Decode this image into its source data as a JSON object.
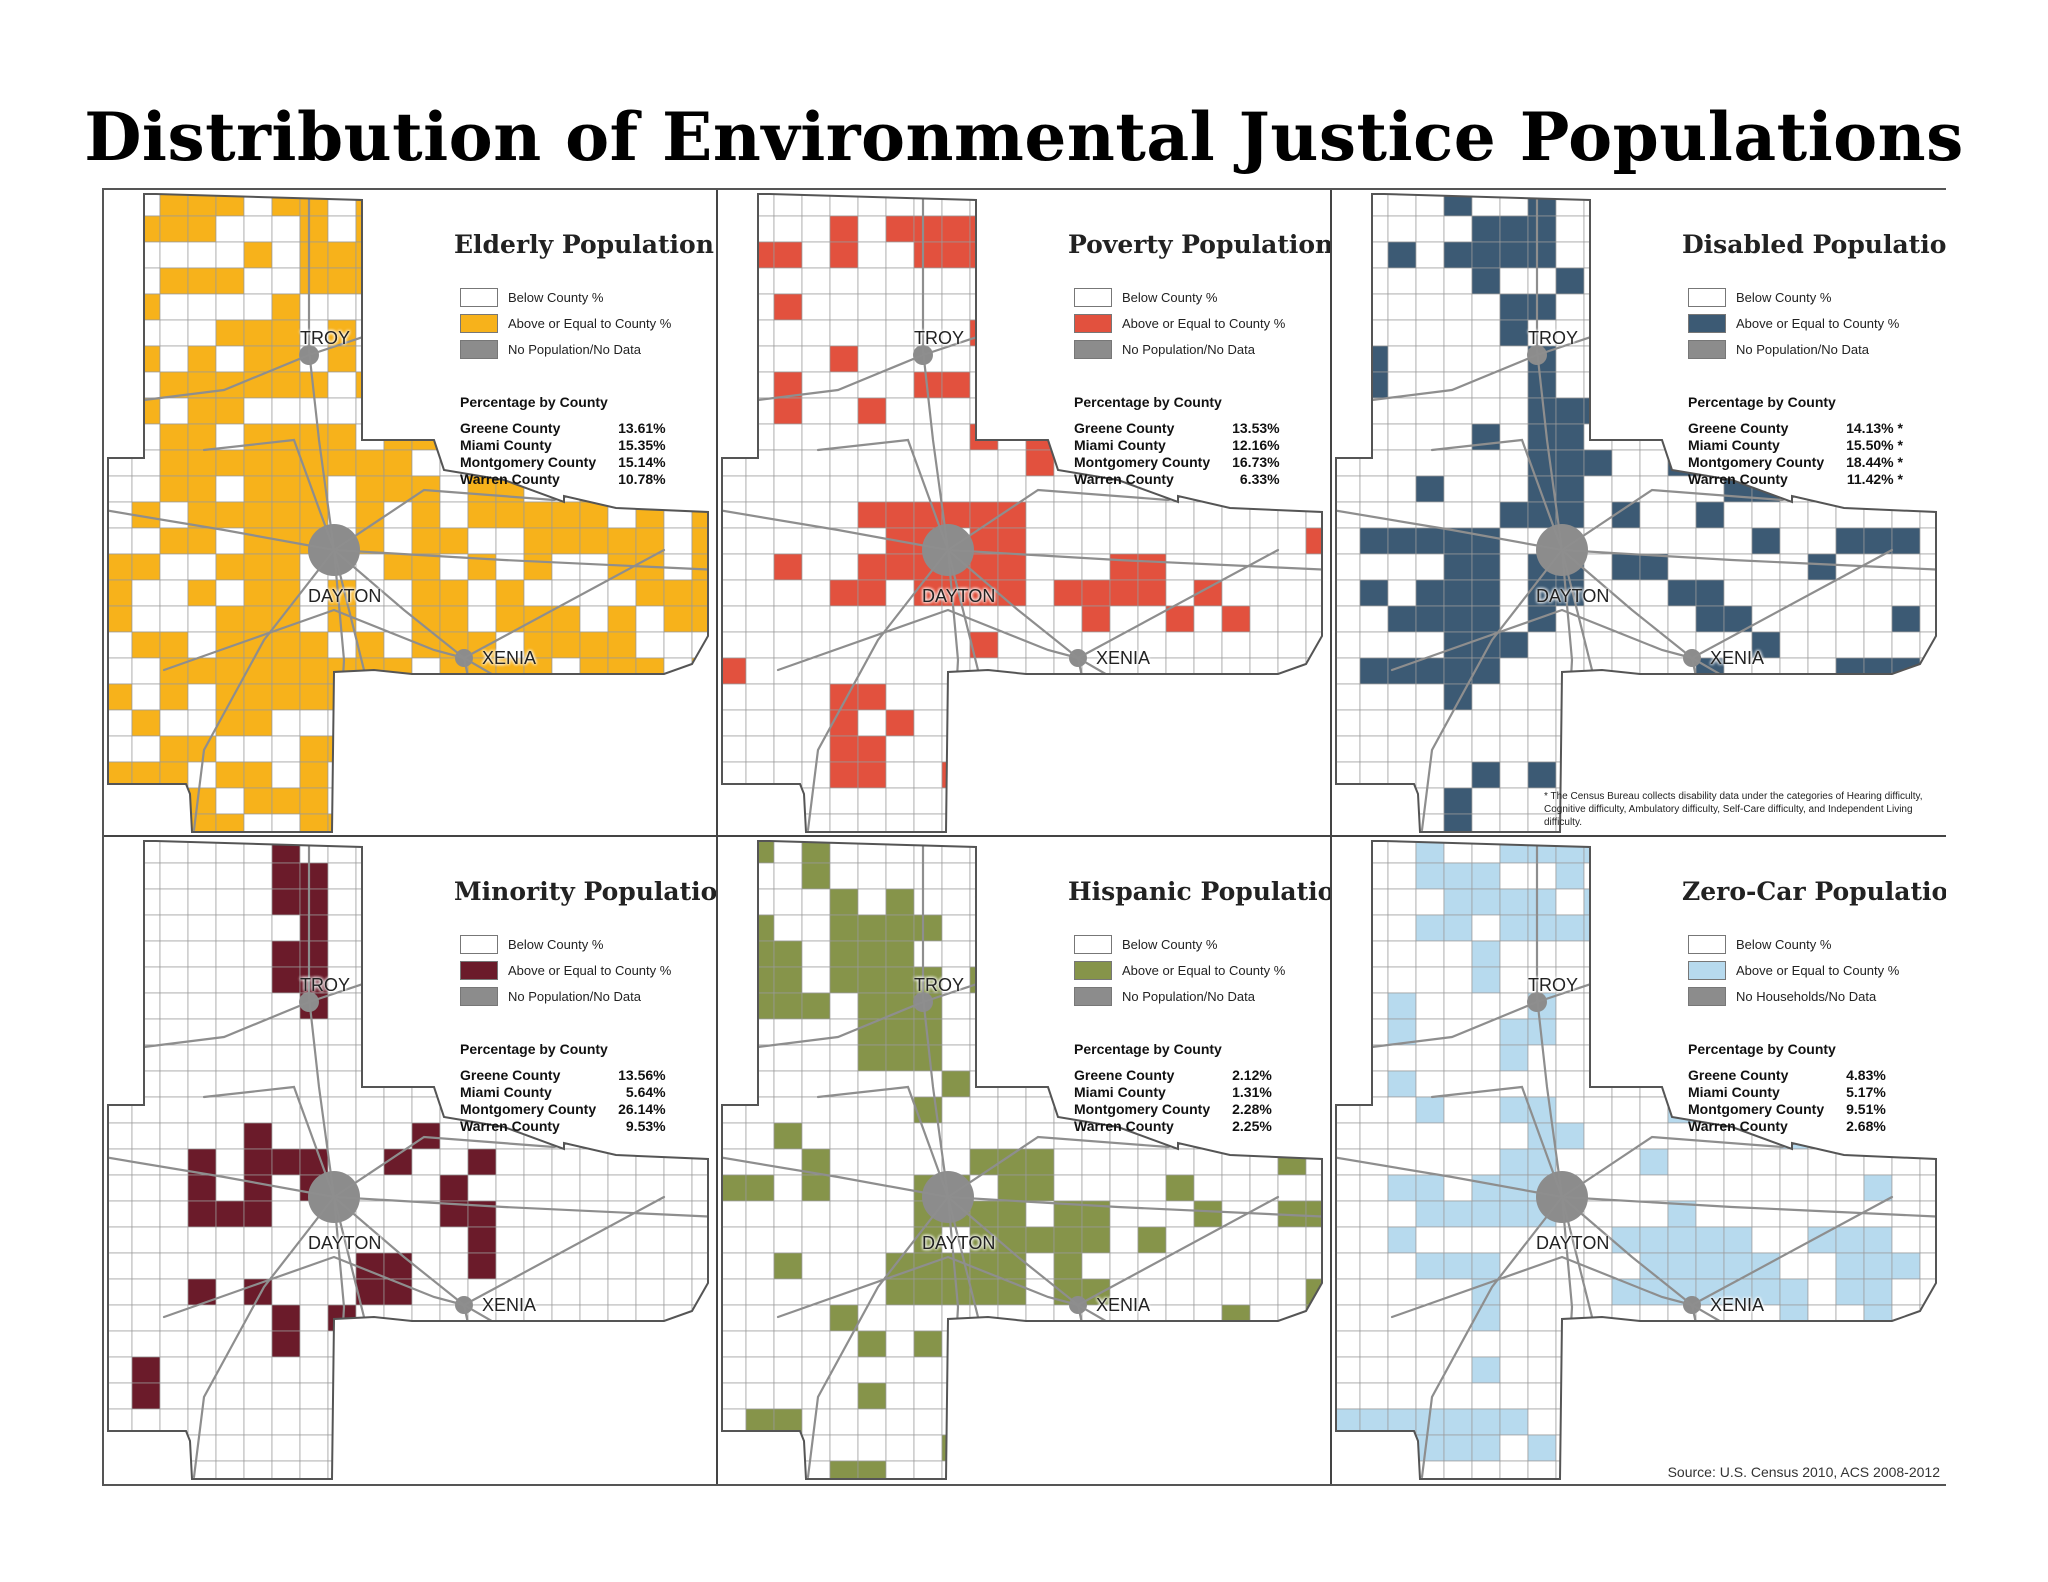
{
  "title": "Distribution of Environmental Justice Populations",
  "cities": {
    "troy": "TROY",
    "dayton": "DAYTON",
    "xenia": "XENIA"
  },
  "percentage_header": "Percentage by County",
  "counties": [
    "Greene County",
    "Miami County",
    "Montgomery County",
    "Warren County"
  ],
  "panels": [
    {
      "id": "elderly",
      "title": "Elderly Population",
      "color": "#F7B21B",
      "legend": [
        "Below County %",
        "Above or Equal to County %",
        "No Population/No Data"
      ],
      "values": [
        "13.61%",
        "15.35%",
        "15.14%",
        "10.78%"
      ],
      "footnote": ""
    },
    {
      "id": "poverty",
      "title": "Poverty Population",
      "color": "#E2513E",
      "legend": [
        "Below County %",
        "Above or Equal to County %",
        "No Population/No Data"
      ],
      "values": [
        "13.53%",
        "12.16%",
        "16.73%",
        "6.33%"
      ],
      "footnote": ""
    },
    {
      "id": "disabled",
      "title": "Disabled Population",
      "color": "#3C5A74",
      "legend": [
        "Below County %",
        "Above or Equal to County %",
        "No Population/No Data"
      ],
      "values": [
        "14.13% *",
        "15.50% *",
        "18.44% *",
        "11.42% *"
      ],
      "footnote": "* The Census Bureau collects disability data under the categories of Hearing difficulty, Cognitive difficulty, Ambulatory difficulty, Self-Care difficulty, and Independent Living difficulty."
    },
    {
      "id": "minority",
      "title": "Minority Population",
      "color": "#6B1B2A",
      "legend": [
        "Below County %",
        "Above or Equal to County %",
        "No Population/No Data"
      ],
      "values": [
        "13.56%",
        "5.64%",
        "26.14%",
        "9.53%"
      ],
      "footnote": ""
    },
    {
      "id": "hispanic",
      "title": "Hispanic Population",
      "color": "#86944A",
      "legend": [
        "Below County %",
        "Above or Equal to County %",
        "No Population/No Data"
      ],
      "values": [
        "2.12%",
        "1.31%",
        "2.28%",
        "2.25%"
      ],
      "footnote": ""
    },
    {
      "id": "zerocar",
      "title": "Zero-Car Population",
      "color": "#B7DAEE",
      "legend": [
        "Below County %",
        "Above or Equal to County %",
        "No Households/No Data"
      ],
      "values": [
        "4.83%",
        "5.17%",
        "9.51%",
        "2.68%"
      ],
      "footnote": ""
    }
  ],
  "colors": {
    "below": "#FFFFFF",
    "nodata": "#8C8C8C",
    "roads": "#8E8E8E",
    "tracts": "#9A9A9A"
  },
  "source": "Source: U.S. Census 2010, ACS 2008-2012"
}
